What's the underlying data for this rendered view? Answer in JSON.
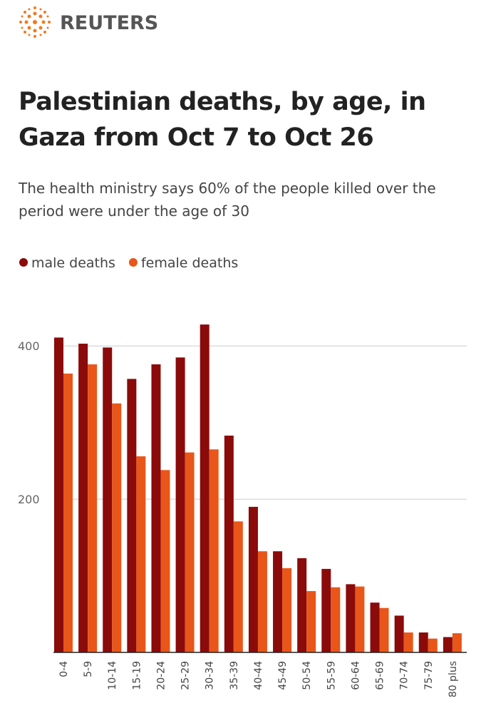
{
  "brand": "REUTERS",
  "chart_data": {
    "type": "bar",
    "title": "Palestinian deaths, by age, in Gaza from Oct 7 to Oct 26",
    "subtitle": "The health ministry says 60% of the people killed over the period were under the age of 30",
    "categories": [
      "0-4",
      "5-9",
      "10-14",
      "15-19",
      "20-24",
      "25-29",
      "30-34",
      "35-39",
      "40-44",
      "45-49",
      "50-54",
      "55-59",
      "60-64",
      "65-69",
      "70-74",
      "75-79",
      "80 plus"
    ],
    "series": [
      {
        "name": "male deaths",
        "color": "#8b0a0a",
        "values": [
          411,
          403,
          398,
          357,
          376,
          385,
          428,
          283,
          190,
          132,
          123,
          109,
          89,
          65,
          48,
          26,
          20
        ]
      },
      {
        "name": "female deaths",
        "color": "#e8561a",
        "values": [
          364,
          376,
          325,
          256,
          238,
          261,
          265,
          171,
          132,
          110,
          80,
          85,
          86,
          58,
          26,
          18,
          25
        ]
      }
    ],
    "ylim": [
      0,
      430
    ],
    "yticks": [
      200,
      400
    ],
    "grid": true,
    "legend": "top-left"
  }
}
